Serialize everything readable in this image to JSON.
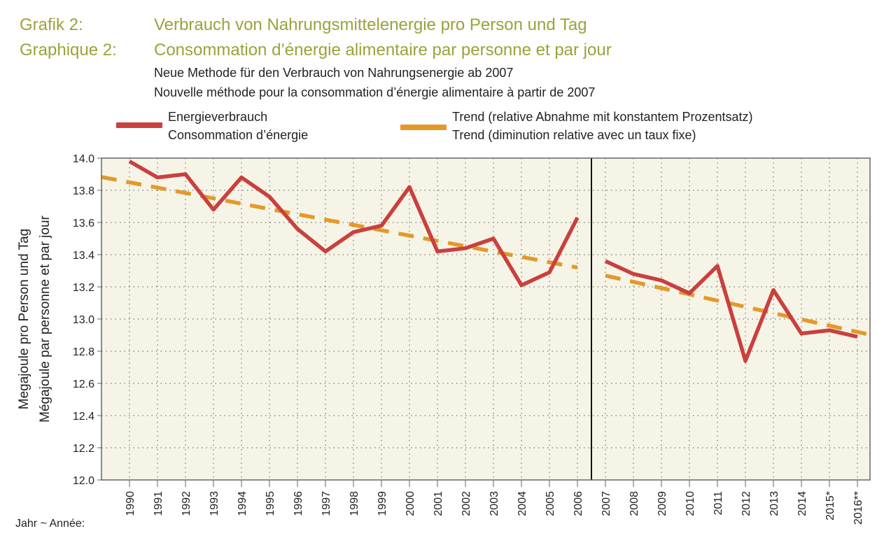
{
  "header": {
    "label_de": "Grafik 2:",
    "label_fr": "Graphique 2:",
    "title_de": "Verbrauch von Nahrungsmittelenergie pro Person und Tag",
    "title_fr": "Consommation d’énergie alimentaire par personne et par jour",
    "subtitle_de": "Neue Methode für den Verbrauch von Nahrungsenergie ab 2007",
    "subtitle_fr": "Nouvelle méthode pour la consommation d’énergie alimentaire à partir de 2007"
  },
  "legend": {
    "series1_de": "Energieverbrauch",
    "series1_fr": "Consommation d’énergie",
    "series2_de": "Trend (relative Abnahme mit konstantem Prozentsatz)",
    "series2_fr": "Trend (diminution relative avec un taux fixe)"
  },
  "colors": {
    "title": "#9aa33a",
    "series": "#c9403e",
    "trend": "#e3992a",
    "plot_bg": "#f6f4e6",
    "grid": "#777777",
    "frame": "#666666"
  },
  "chart_data": {
    "type": "line",
    "ylabel_de": "Megajoule pro Person und Tag",
    "ylabel_fr": "Mégajoule par personne et par jour",
    "xlabel": "Jahr ~ Année:",
    "ylim": [
      12.0,
      14.0
    ],
    "yticks": [
      "12.0",
      "12.2",
      "12.4",
      "12.6",
      "12.8",
      "13.0",
      "13.2",
      "13.4",
      "13.6",
      "13.8",
      "14.0"
    ],
    "categories": [
      "1990",
      "1991",
      "1992",
      "1993",
      "1994",
      "1995",
      "1996",
      "1997",
      "1998",
      "1999",
      "2000",
      "2001",
      "2002",
      "2003",
      "2004",
      "2005",
      "2006",
      "2007",
      "2008",
      "2009",
      "2010",
      "2011",
      "2012",
      "2013",
      "2014",
      "2015*",
      "2016**"
    ],
    "method_break_after": "2006",
    "grid": true,
    "legend_position": "top",
    "series": [
      {
        "name": "Energieverbrauch / Consommation d’énergie",
        "segments": [
          {
            "x": [
              "1990",
              "1991",
              "1992",
              "1993",
              "1994",
              "1995",
              "1996",
              "1997",
              "1998",
              "1999",
              "2000",
              "2001",
              "2002",
              "2003",
              "2004",
              "2005",
              "2006"
            ],
            "values": [
              13.98,
              13.88,
              13.9,
              13.68,
              13.88,
              13.76,
              13.56,
              13.42,
              13.54,
              13.58,
              13.82,
              13.42,
              13.44,
              13.5,
              13.21,
              13.29,
              13.63
            ]
          },
          {
            "x": [
              "2007",
              "2008",
              "2009",
              "2010",
              "2011",
              "2012",
              "2013",
              "2014",
              "2015*",
              "2016**"
            ],
            "values": [
              13.36,
              13.28,
              13.24,
              13.16,
              13.33,
              12.74,
              13.18,
              12.91,
              12.93,
              12.89
            ]
          }
        ]
      },
      {
        "name": "Trend (relative Abnahme mit konstantem Prozentsatz) / Trend (diminution relative avec un taux fixe)",
        "dashed": true,
        "segments": [
          {
            "x": [
              "1990",
              "2006"
            ],
            "values": [
              13.92,
              13.32
            ]
          },
          {
            "x": [
              "2007",
              "2016**"
            ],
            "values": [
              13.27,
              12.92
            ]
          }
        ]
      }
    ]
  }
}
